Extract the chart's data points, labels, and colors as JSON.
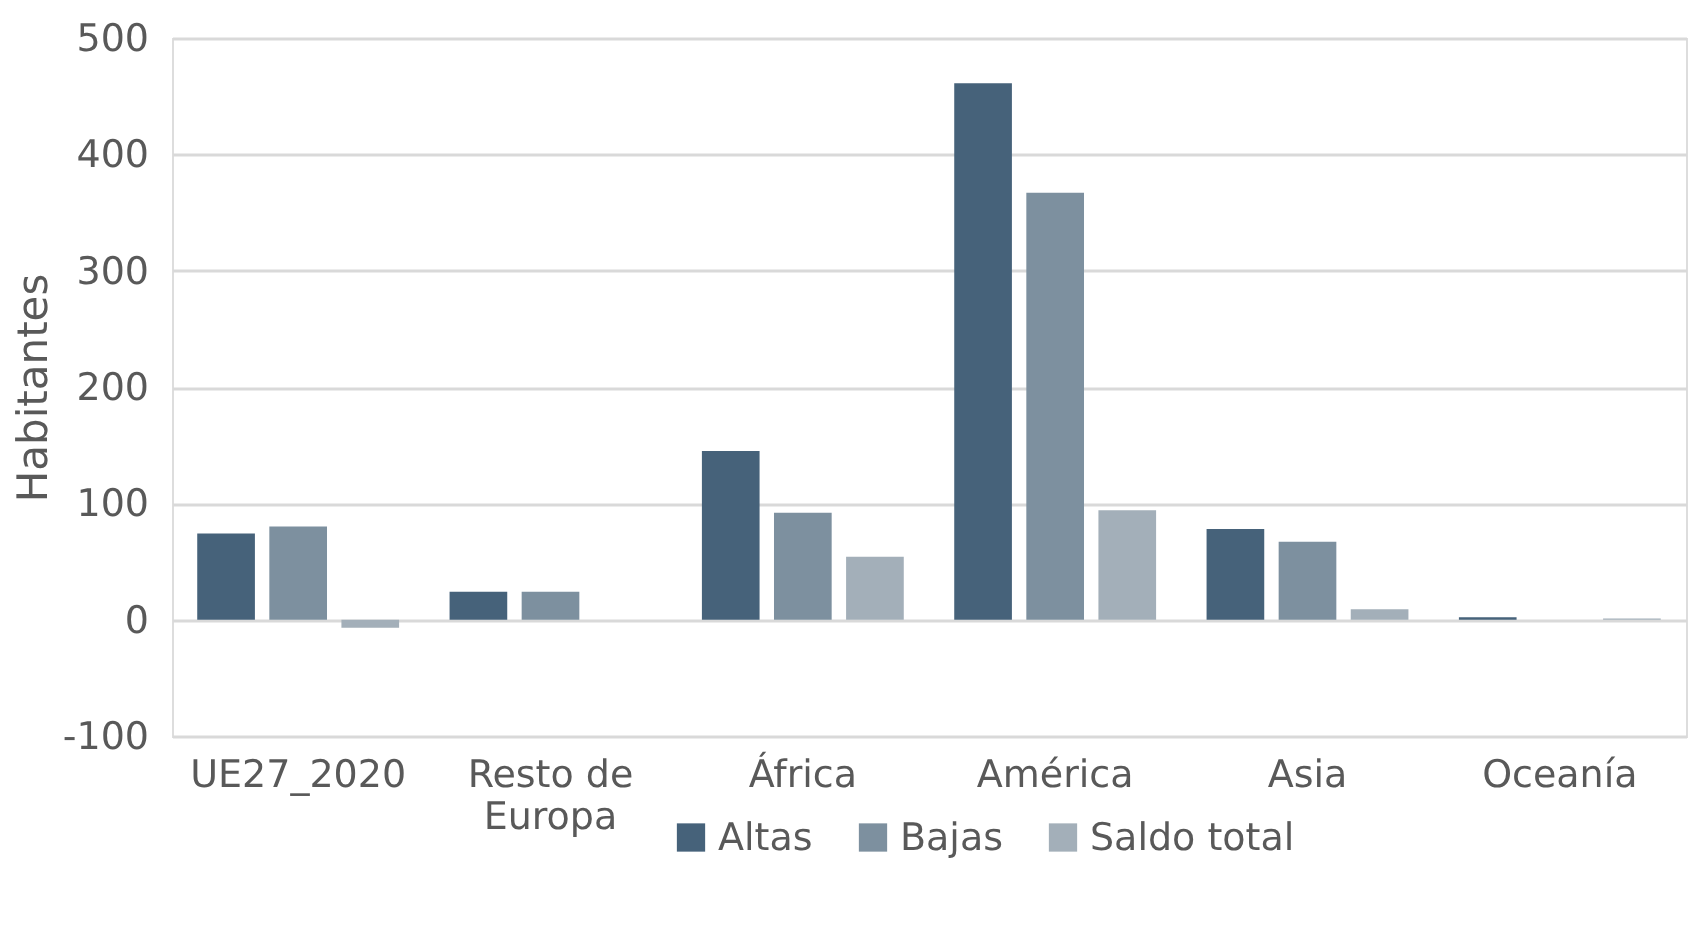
{
  "chart_data": {
    "type": "bar",
    "ylabel": "Habitantes",
    "categories": [
      "UE27_2020",
      "Resto de\nEuropa",
      "África",
      "América",
      "Asia",
      "Oceanía"
    ],
    "series": [
      {
        "name": "Altas",
        "color": "#46627a",
        "values": [
          74,
          24,
          145,
          461,
          78,
          2
        ]
      },
      {
        "name": "Bajas",
        "color": "#7d909f",
        "values": [
          80,
          24,
          92,
          367,
          67,
          0
        ]
      },
      {
        "name": "Saldo total",
        "color": "#a3afb9",
        "values": [
          -7,
          0,
          54,
          94,
          9,
          1
        ]
      }
    ],
    "ylim": [
      -100,
      500
    ],
    "yticks": [
      -100,
      0,
      100,
      200,
      300,
      400,
      500
    ],
    "grid": "y",
    "legend": "bottom"
  }
}
